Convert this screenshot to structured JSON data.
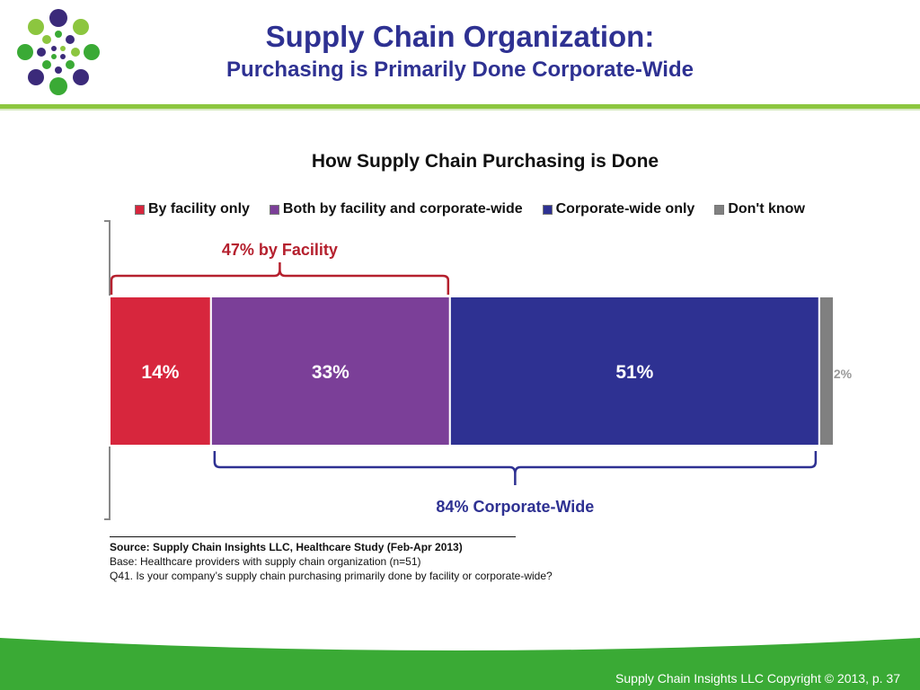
{
  "header": {
    "title": "Supply Chain Organization:",
    "subtitle": "Purchasing is Primarily Done Corporate-Wide"
  },
  "chart_data": {
    "type": "bar",
    "orientation": "horizontal-stacked",
    "title": "How Supply Chain Purchasing is Done",
    "series": [
      {
        "name": "By facility only",
        "value": 14,
        "label": "14%",
        "color": "#d7263d"
      },
      {
        "name": "Both by facility and corporate-wide",
        "value": 33,
        "label": "33%",
        "color": "#7b3f98"
      },
      {
        "name": "Corporate-wide only",
        "value": 51,
        "label": "51%",
        "color": "#2e3192"
      },
      {
        "name": "Don't know",
        "value": 2,
        "label": "2%",
        "color": "#808080"
      }
    ],
    "legend_position": "top",
    "annotations": [
      {
        "text": "47% by Facility",
        "color": "#b5202e",
        "spans": [
          "By facility only",
          "Both by facility and corporate-wide"
        ]
      },
      {
        "text": "84% Corporate-Wide",
        "color": "#2e3192",
        "spans": [
          "Both by facility and corporate-wide",
          "Corporate-wide only"
        ]
      }
    ]
  },
  "source": {
    "line1": "Source:  Supply Chain Insights LLC, Healthcare Study (Feb-Apr 2013)",
    "line2": "Base:  Healthcare providers with supply chain organization (n=51)",
    "line3": "Q41. Is your company’s supply chain purchasing primarily done by facility or corporate-wide?"
  },
  "footer": {
    "text": "Supply Chain Insights LLC Copyright © 2013, p. 37"
  },
  "colors": {
    "title": "#2e3192",
    "accent_green": "#3aaa35",
    "header_rule": "#8cc63f"
  }
}
